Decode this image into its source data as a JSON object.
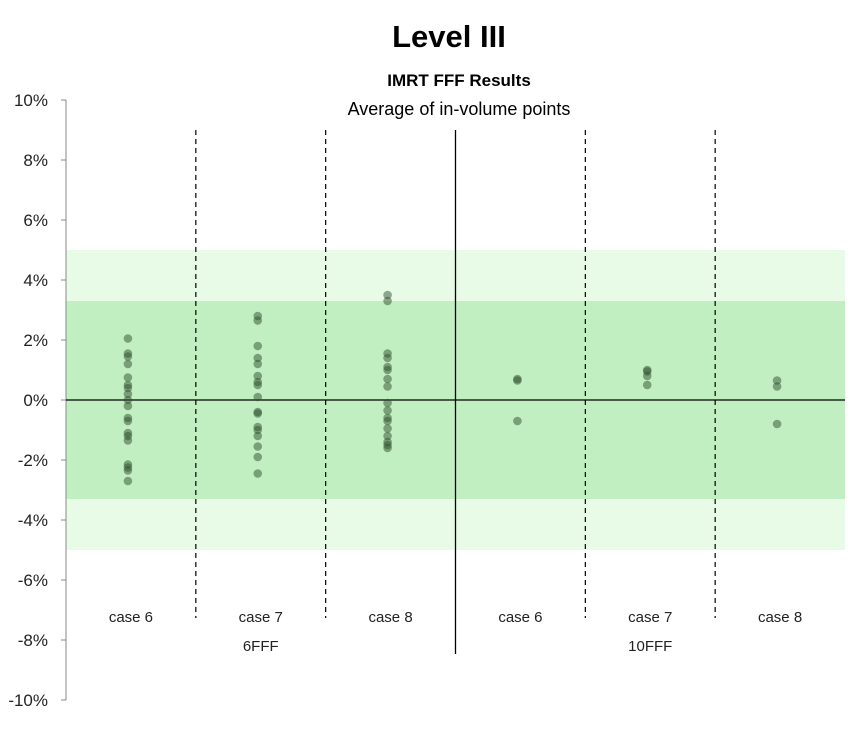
{
  "page": {
    "heading": "Level III"
  },
  "colors": {
    "outer_band": "#e8fbe6",
    "inner_band": "#c2efc1",
    "point": "#2f4f2f",
    "axis": "#000000",
    "divider": "#000000"
  },
  "chart_data": {
    "type": "scatter",
    "title": "IMRT FFF Results",
    "subtitle": "Average of in-volume points",
    "ylim": [
      -10,
      10
    ],
    "y_ticks": [
      10,
      8,
      6,
      4,
      2,
      0,
      -2,
      -4,
      -6,
      -8,
      -10
    ],
    "y_tick_labels": [
      "10%",
      "8%",
      "6%",
      "4%",
      "2%",
      "0%",
      "-2%",
      "-4%",
      "-6%",
      "-8%",
      "-10%"
    ],
    "bands": [
      {
        "from": -5,
        "to": 5,
        "color": "#e8fbe6"
      },
      {
        "from": -3.3,
        "to": 3.3,
        "color": "#c2efc1"
      }
    ],
    "groups": [
      {
        "label": "6FFF",
        "categories": [
          "case 6",
          "case 7",
          "case 8"
        ]
      },
      {
        "label": "10FFF",
        "categories": [
          "case 6",
          "case 7",
          "case 8"
        ]
      }
    ],
    "categories": [
      {
        "label": "case 6",
        "group": "6FFF",
        "values": [
          2.05,
          1.55,
          1.45,
          1.2,
          0.75,
          0.5,
          0.4,
          0.2,
          0.0,
          -0.2,
          -0.6,
          -0.7,
          -1.1,
          -1.2,
          -1.35,
          -2.15,
          -2.25,
          -2.35,
          -2.7
        ]
      },
      {
        "label": "case 7",
        "group": "6FFF",
        "values": [
          2.8,
          2.65,
          1.8,
          1.4,
          1.2,
          0.8,
          0.6,
          0.5,
          0.1,
          -0.4,
          -0.45,
          -0.9,
          -1.0,
          -1.2,
          -1.55,
          -1.9,
          -2.45
        ]
      },
      {
        "label": "case 8",
        "group": "6FFF",
        "values": [
          3.5,
          3.3,
          1.55,
          1.4,
          1.1,
          1.0,
          0.7,
          0.45,
          -0.1,
          -0.35,
          -0.6,
          -0.7,
          -0.95,
          -1.2,
          -1.4,
          -1.5,
          -1.6
        ]
      },
      {
        "label": "case 6",
        "group": "10FFF",
        "values": [
          0.7,
          0.65,
          -0.7
        ]
      },
      {
        "label": "case 7",
        "group": "10FFF",
        "values": [
          1.0,
          0.95,
          0.8,
          0.5
        ]
      },
      {
        "label": "case 8",
        "group": "10FFF",
        "values": [
          0.65,
          0.45,
          -0.8
        ]
      }
    ],
    "grid": false,
    "legend": "none"
  }
}
